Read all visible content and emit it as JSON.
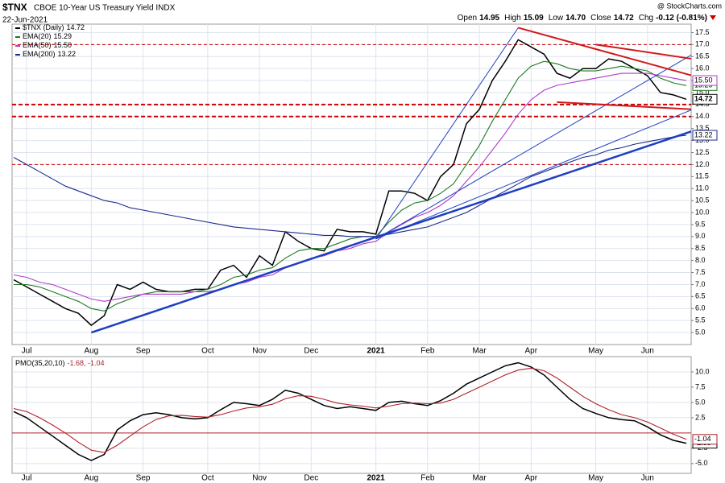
{
  "chart_data": [
    {
      "type": "line",
      "title": "$TNX",
      "subtitle": "CBOE 10-Year US Treasury Yield INDX",
      "date": "22-Jun-2021",
      "credit": "@ StockCharts.com",
      "quote": [
        {
          "label": "Open",
          "value": "14.95"
        },
        {
          "label": "High",
          "value": "15.09"
        },
        {
          "label": "Low",
          "value": "14.70"
        },
        {
          "label": "Close",
          "value": "14.72"
        },
        {
          "label": "Chg",
          "value": "-0.12 (-0.81%)"
        }
      ],
      "categories": [
        null,
        "Jul",
        null,
        null,
        null,
        null,
        "Aug",
        null,
        null,
        null,
        "Sep",
        null,
        null,
        null,
        null,
        "Oct",
        null,
        null,
        null,
        "Nov",
        null,
        null,
        null,
        "Dec",
        null,
        null,
        null,
        null,
        "2021",
        null,
        null,
        null,
        "Feb",
        null,
        null,
        null,
        "Mar",
        null,
        null,
        null,
        "Apr",
        null,
        null,
        null,
        null,
        "May",
        null,
        null,
        null,
        "Jun",
        null,
        null,
        null
      ],
      "series": [
        {
          "name": "$TNX (Daily)",
          "legend_value": "14.72",
          "color": "#000000",
          "values": [
            7.2,
            6.9,
            6.6,
            6.3,
            6.0,
            5.8,
            5.3,
            5.7,
            7.0,
            6.8,
            7.1,
            6.8,
            6.7,
            6.7,
            6.8,
            6.8,
            7.6,
            7.8,
            7.3,
            8.2,
            7.8,
            9.2,
            8.8,
            8.5,
            8.4,
            9.3,
            9.2,
            9.2,
            9.1,
            10.9,
            10.9,
            10.8,
            10.5,
            11.5,
            12.0,
            13.7,
            14.3,
            15.5,
            16.3,
            17.2,
            16.9,
            16.6,
            15.8,
            15.6,
            16.0,
            16.0,
            16.4,
            16.3,
            16.0,
            15.7,
            15.0,
            14.9,
            14.72
          ]
        },
        {
          "name": "EMA(20)",
          "legend_value": "15.29",
          "color": "#1f7a1f",
          "values": [
            7.0,
            7.0,
            6.9,
            6.7,
            6.5,
            6.3,
            6.0,
            5.9,
            6.2,
            6.4,
            6.6,
            6.7,
            6.7,
            6.7,
            6.7,
            6.8,
            7.0,
            7.3,
            7.4,
            7.6,
            7.7,
            8.1,
            8.4,
            8.5,
            8.5,
            8.7,
            8.9,
            9.0,
            9.0,
            9.6,
            10.1,
            10.4,
            10.5,
            10.8,
            11.2,
            12.0,
            12.8,
            13.8,
            14.7,
            15.6,
            16.1,
            16.3,
            16.2,
            16.0,
            15.9,
            15.9,
            16.0,
            16.1,
            16.0,
            15.9,
            15.6,
            15.4,
            15.29
          ]
        },
        {
          "name": "EMA(50)",
          "legend_value": "15.50",
          "color": "#b03cc8",
          "values": [
            7.4,
            7.3,
            7.1,
            7.0,
            6.8,
            6.6,
            6.4,
            6.3,
            6.4,
            6.5,
            6.6,
            6.6,
            6.6,
            6.6,
            6.7,
            6.7,
            6.8,
            7.0,
            7.1,
            7.3,
            7.4,
            7.7,
            7.9,
            8.1,
            8.2,
            8.4,
            8.5,
            8.7,
            8.8,
            9.2,
            9.5,
            9.8,
            10.0,
            10.3,
            10.7,
            11.3,
            11.9,
            12.6,
            13.3,
            14.1,
            14.7,
            15.1,
            15.3,
            15.4,
            15.5,
            15.6,
            15.7,
            15.8,
            15.8,
            15.8,
            15.7,
            15.6,
            15.5
          ]
        },
        {
          "name": "EMA(200)",
          "legend_value": "13.22",
          "color": "#1a2a8c",
          "values": [
            12.3,
            12.0,
            11.7,
            11.4,
            11.1,
            10.9,
            10.7,
            10.5,
            10.4,
            10.2,
            10.1,
            10.0,
            9.9,
            9.8,
            9.7,
            9.6,
            9.5,
            9.4,
            9.35,
            9.3,
            9.25,
            9.2,
            9.15,
            9.1,
            9.05,
            9.05,
            9.0,
            9.0,
            9.0,
            9.1,
            9.2,
            9.3,
            9.4,
            9.6,
            9.8,
            10.0,
            10.3,
            10.6,
            10.9,
            11.2,
            11.5,
            11.7,
            11.9,
            12.1,
            12.3,
            12.4,
            12.6,
            12.7,
            12.85,
            12.95,
            13.05,
            13.15,
            13.22
          ]
        }
      ],
      "ylim": [
        4.5,
        17.85
      ],
      "yticks": [
        {
          "value": 5,
          "label": "5.0"
        },
        {
          "value": 5.5,
          "label": "5.5"
        },
        {
          "value": 6,
          "label": "6.0"
        },
        {
          "value": 6.5,
          "label": "6.5"
        },
        {
          "value": 7,
          "label": "7.0"
        },
        {
          "value": 7.5,
          "label": "7.5"
        },
        {
          "value": 8,
          "label": "8.0"
        },
        {
          "value": 8.5,
          "label": "8.5"
        },
        {
          "value": 9,
          "label": "9.0"
        },
        {
          "value": 9.5,
          "label": "9.5"
        },
        {
          "value": 10,
          "label": "10.0"
        },
        {
          "value": 10.5,
          "label": "10.5"
        },
        {
          "value": 11,
          "label": "11.0"
        },
        {
          "value": 11.5,
          "label": "11.5"
        },
        {
          "value": 12,
          "label": "12.0"
        },
        {
          "value": 12.5,
          "label": "12.5"
        },
        {
          "value": 13,
          "label": "13.0"
        },
        {
          "value": 13.5,
          "label": "13.5"
        },
        {
          "value": 14,
          "label": "14.0"
        },
        {
          "value": 14.5,
          "label": "14.5"
        },
        {
          "value": 15,
          "label": "15.0"
        },
        {
          "value": 15.5,
          "label": "15.5"
        },
        {
          "value": 16,
          "label": "16.0"
        },
        {
          "value": 16.5,
          "label": "16.5"
        },
        {
          "value": 17,
          "label": "17.0"
        },
        {
          "value": 17.5,
          "label": "17.5"
        }
      ],
      "grid": true,
      "hlines": [
        {
          "value": 17.0,
          "color": "#cc0000",
          "width": 1
        },
        {
          "value": 14.5,
          "color": "#cc0000",
          "width": 2
        },
        {
          "value": 14.0,
          "color": "#cc0000",
          "width": 2
        },
        {
          "value": 12.0,
          "color": "#cc0000",
          "width": 1
        }
      ],
      "trendlines": [
        {
          "color": "#1f3fc0",
          "width": 2.5,
          "points": [
            [
              6,
              5.0
            ],
            [
              52.5,
              13.4
            ]
          ]
        },
        {
          "color": "#1f3fc0",
          "width": 1,
          "points": [
            [
              28,
              8.9
            ],
            [
              39,
              17.7
            ]
          ]
        },
        {
          "color": "#1f3fc0",
          "width": 1,
          "points": [
            [
              28,
              8.9
            ],
            [
              52.5,
              16.6
            ]
          ]
        },
        {
          "color": "#1f3fc0",
          "width": 1,
          "points": [
            [
              28,
              8.9
            ],
            [
              52.5,
              14.3
            ]
          ]
        },
        {
          "color": "#d01818",
          "width": 2,
          "points": [
            [
              39,
              17.7
            ],
            [
              52.5,
              15.7
            ]
          ]
        },
        {
          "color": "#d01818",
          "width": 2,
          "points": [
            [
              45,
              17.0
            ],
            [
              52.5,
              16.4
            ]
          ]
        },
        {
          "color": "#d01818",
          "width": 2,
          "points": [
            [
              42,
              14.6
            ],
            [
              52.5,
              14.3
            ]
          ]
        }
      ]
    },
    {
      "type": "line",
      "title": "PMO(35,20,10)",
      "legend_text": "-1.68, -1.04",
      "categories": [
        null,
        "Jul",
        null,
        null,
        null,
        null,
        "Aug",
        null,
        null,
        null,
        "Sep",
        null,
        null,
        null,
        null,
        "Oct",
        null,
        null,
        null,
        "Nov",
        null,
        null,
        null,
        "Dec",
        null,
        null,
        null,
        null,
        "2021",
        null,
        null,
        null,
        "Feb",
        null,
        null,
        null,
        "Mar",
        null,
        null,
        null,
        "Apr",
        null,
        null,
        null,
        null,
        "May",
        null,
        null,
        null,
        "Jun",
        null,
        null,
        null
      ],
      "series": [
        {
          "color": "#000000",
          "values": [
            3.5,
            2.5,
            1.0,
            -0.5,
            -2.0,
            -3.5,
            -4.5,
            -3.5,
            0.5,
            2.0,
            3.0,
            3.3,
            3.0,
            2.5,
            2.3,
            2.5,
            3.8,
            5.0,
            4.8,
            4.5,
            5.5,
            7.0,
            6.5,
            5.5,
            4.5,
            4.0,
            4.3,
            4.0,
            3.7,
            5.0,
            5.2,
            4.8,
            4.5,
            5.3,
            6.5,
            8.0,
            9.0,
            10.0,
            11.0,
            11.5,
            10.8,
            9.5,
            7.5,
            5.5,
            4.0,
            3.2,
            2.5,
            2.2,
            2.0,
            1.0,
            -0.3,
            -1.2,
            -1.68
          ]
        },
        {
          "color": "#b0202a",
          "values": [
            4.0,
            3.5,
            2.5,
            1.3,
            0.0,
            -1.5,
            -2.8,
            -3.2,
            -2.0,
            -0.5,
            1.0,
            2.2,
            2.8,
            2.9,
            2.7,
            2.6,
            3.0,
            3.6,
            4.1,
            4.3,
            4.7,
            5.6,
            6.1,
            6.0,
            5.5,
            4.9,
            4.6,
            4.4,
            4.1,
            4.4,
            4.8,
            4.9,
            4.8,
            4.9,
            5.5,
            6.5,
            7.5,
            8.5,
            9.5,
            10.3,
            10.6,
            10.2,
            9.0,
            7.5,
            6.0,
            4.8,
            3.8,
            3.0,
            2.5,
            1.8,
            0.8,
            -0.2,
            -1.04
          ]
        }
      ],
      "ylim": [
        -6.6,
        12.5
      ],
      "yticks": [
        {
          "value": -5,
          "label": "-5.0"
        },
        {
          "value": -2.5,
          "label": "-2.5"
        },
        {
          "value": 2.5,
          "label": "2.5"
        },
        {
          "value": 5,
          "label": "5.0"
        },
        {
          "value": 7.5,
          "label": "7.5"
        },
        {
          "value": 10,
          "label": "10.0"
        }
      ],
      "grid": true,
      "hlines": [
        {
          "value": 0,
          "color": "#b0202a",
          "width": 1
        }
      ]
    }
  ]
}
